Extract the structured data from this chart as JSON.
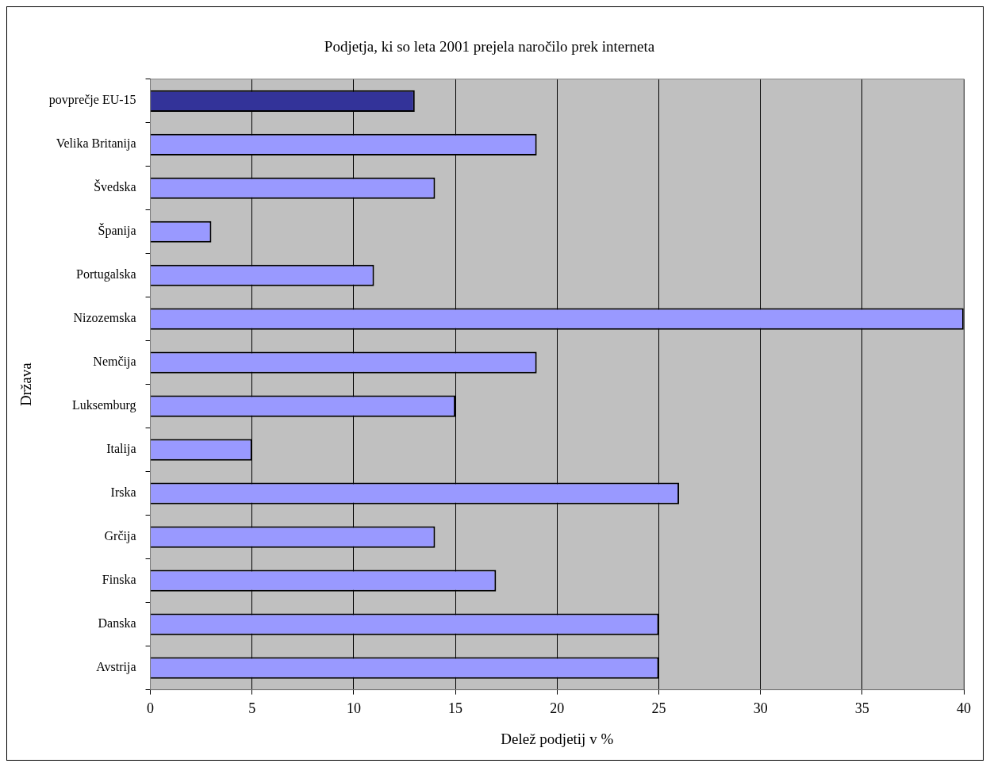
{
  "chart_data": {
    "type": "bar",
    "orientation": "horizontal",
    "title": "Podjetja, ki so leta 2001 prejela naročilo prek interneta",
    "xlabel": "Delež podjetij v %",
    "ylabel": "Država",
    "categories": [
      "povprečje EU-15",
      "Velika Britanija",
      "Švedska",
      "Španija",
      "Portugalska",
      "Nizozemska",
      "Nemčija",
      "Luksemburg",
      "Italija",
      "Irska",
      "Grčija",
      "Finska",
      "Danska",
      "Avstrija"
    ],
    "values": [
      13,
      19,
      14,
      3,
      11,
      40,
      19,
      15,
      5,
      26,
      14,
      17,
      25,
      25
    ],
    "colors": [
      "#333399",
      "#9999ff",
      "#9999ff",
      "#9999ff",
      "#9999ff",
      "#9999ff",
      "#9999ff",
      "#9999ff",
      "#9999ff",
      "#9999ff",
      "#9999ff",
      "#9999ff",
      "#9999ff",
      "#9999ff"
    ],
    "xlim": [
      0,
      40
    ],
    "xticks": [
      0,
      5,
      10,
      15,
      20,
      25,
      30,
      35,
      40
    ],
    "grid": "x",
    "legend": false
  }
}
